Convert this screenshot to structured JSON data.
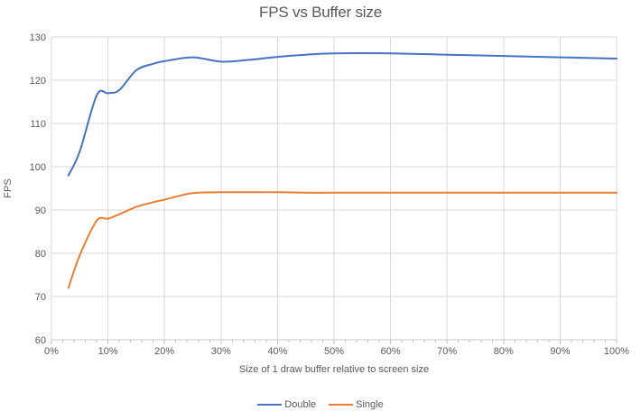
{
  "colors": {
    "background": "#FFFFFF",
    "gridline": "#D9D9D9",
    "axis_line": "#C6C6C6",
    "tick": "#BFBFBF",
    "text": "#595959",
    "series_double": "#4472C4",
    "series_single": "#ED7D31"
  },
  "chart_data": {
    "type": "line",
    "title": "FPS vs Buffer size",
    "xlabel": "Size of 1 draw buffer relative to screen size",
    "ylabel": "FPS",
    "xlim": [
      0,
      100
    ],
    "ylim": [
      60,
      130
    ],
    "x_tick_labels": [
      "0%",
      "10%",
      "20%",
      "30%",
      "40%",
      "50%",
      "60%",
      "70%",
      "80%",
      "90%",
      "100%"
    ],
    "x_minor_tick_step": 2,
    "y_ticks": [
      60,
      70,
      80,
      90,
      100,
      110,
      120,
      130
    ],
    "grid": true,
    "legend_position": "bottom",
    "line_smoothing": true,
    "x": [
      3,
      5,
      8,
      10,
      12,
      15,
      18,
      20,
      25,
      30,
      35,
      40,
      45,
      50,
      60,
      70,
      80,
      90,
      100
    ],
    "series": [
      {
        "name": "Double",
        "color": "#4472C4",
        "values": [
          98,
          103.5,
          116.5,
          117,
          117.7,
          122.3,
          123.8,
          124.4,
          125.3,
          124.3,
          124.7,
          125.4,
          125.9,
          126.2,
          126.2,
          125.9,
          125.6,
          125.3,
          125
        ]
      },
      {
        "name": "Single",
        "color": "#ED7D31",
        "values": [
          72,
          79.5,
          87.5,
          88,
          89,
          90.7,
          91.8,
          92.4,
          93.9,
          94.1,
          94.1,
          94.1,
          94,
          94,
          94,
          94,
          94,
          94,
          94
        ]
      }
    ]
  }
}
